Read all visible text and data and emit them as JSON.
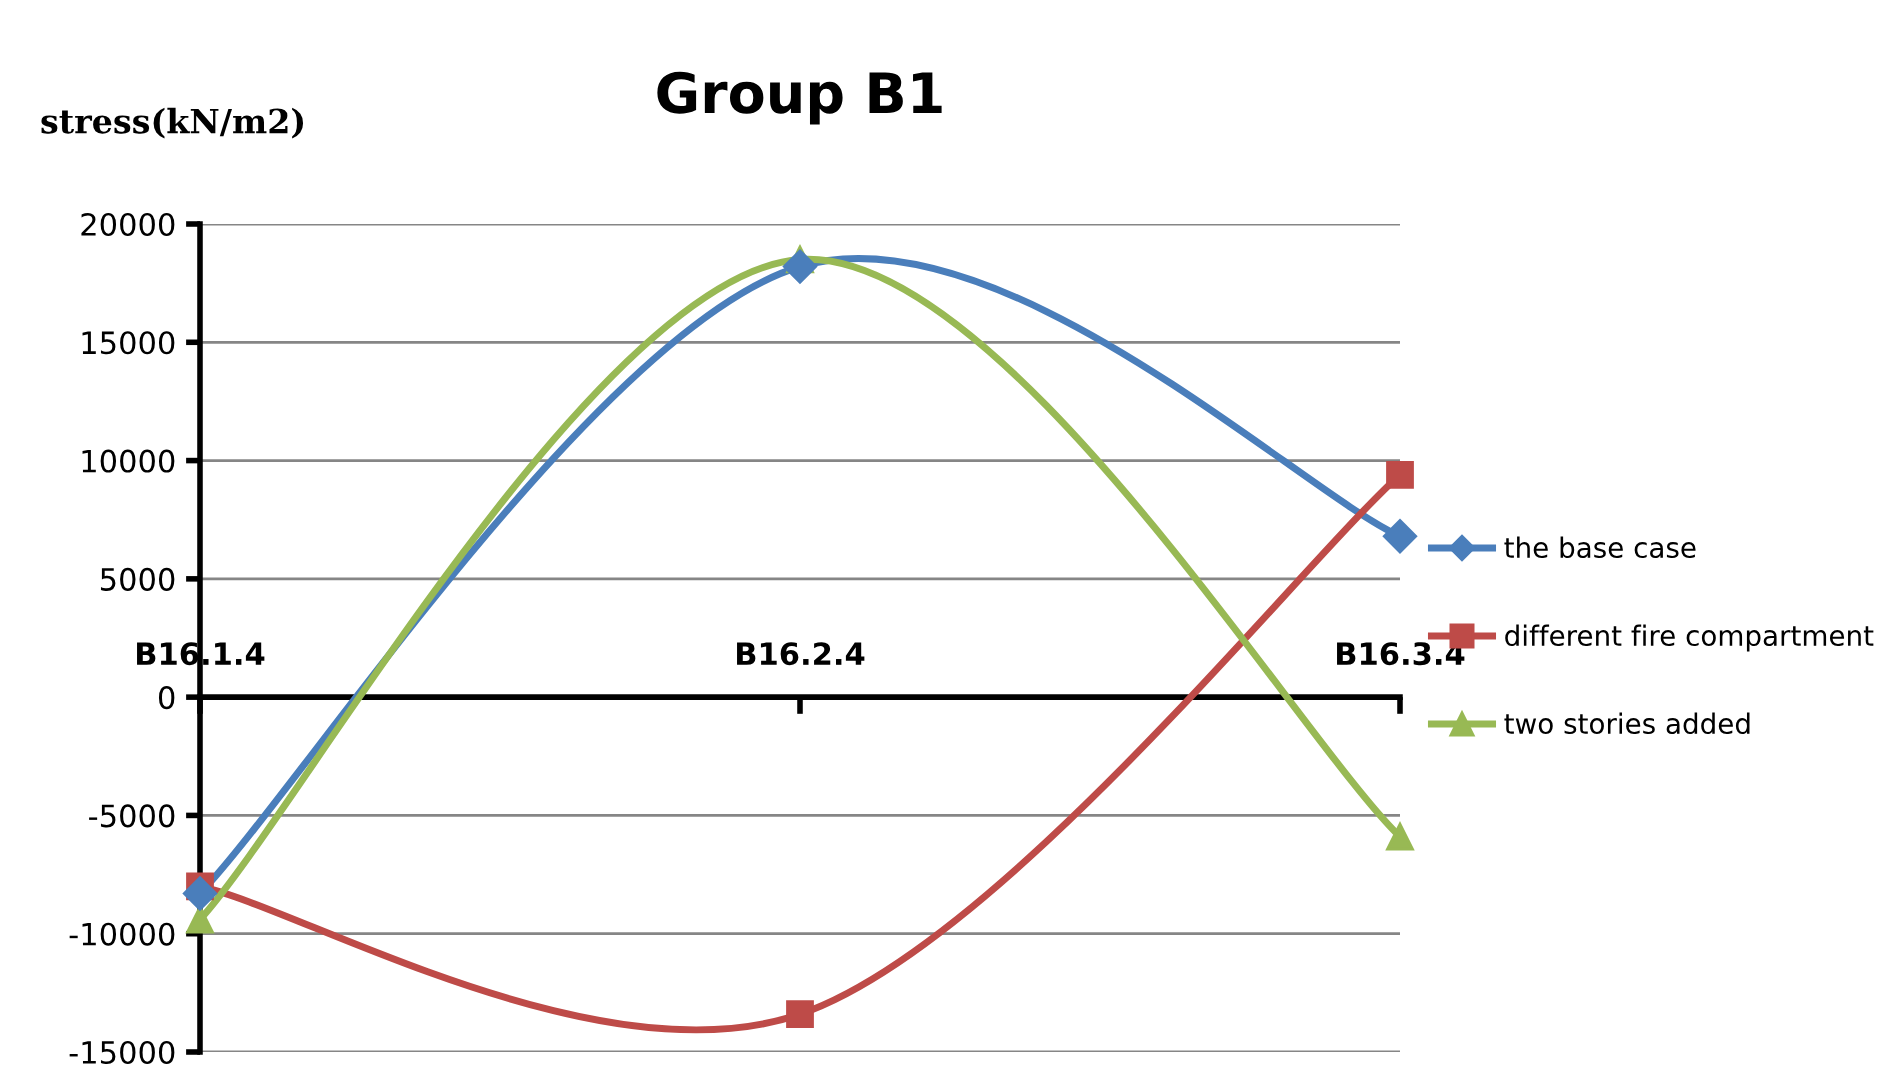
{
  "chart_data": {
    "type": "line",
    "title": "Group B1",
    "ylabel": "stress(kN/m2)",
    "categories": [
      "B16.1.4",
      "B16.2.4",
      "B16.3.4"
    ],
    "series": [
      {
        "name": "the base case",
        "color": "#4a7ebb",
        "marker": "diamond",
        "values": [
          -8300,
          18200,
          6800
        ]
      },
      {
        "name": "different fire compartment",
        "color": "#be4b48",
        "marker": "square",
        "values": [
          -8000,
          -13400,
          9400
        ]
      },
      {
        "name": "two stories added",
        "color": "#98b954",
        "marker": "triangle",
        "values": [
          -9400,
          18500,
          -5900
        ]
      }
    ],
    "ylim": [
      -15000,
      20000
    ],
    "yticks": [
      -15000,
      -10000,
      -5000,
      0,
      5000,
      10000,
      15000,
      20000
    ],
    "grid": "y",
    "legend": "right",
    "line_style": "solid"
  }
}
